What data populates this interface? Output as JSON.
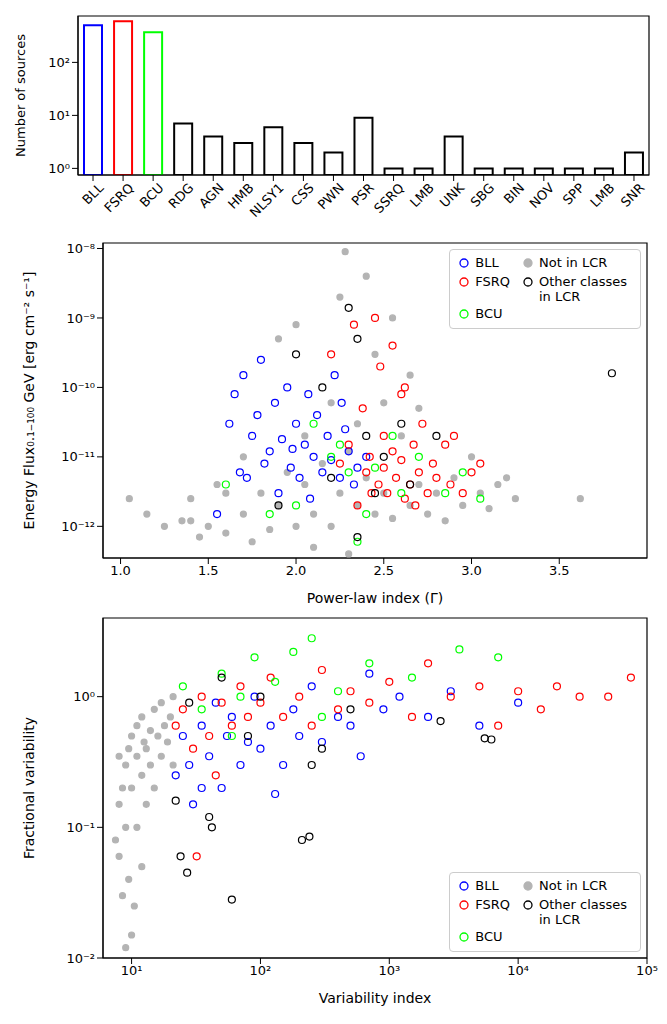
{
  "chart_data": [
    {
      "type": "bar",
      "ylabel": "Number of sources",
      "log": "y",
      "categories": [
        "BLL",
        "FSRQ",
        "BCU",
        "RDG",
        "AGN",
        "HMB",
        "NLSY1",
        "CSS",
        "PWN",
        "PSR",
        "SSRQ",
        "LMB",
        "UNK",
        "SBG",
        "BIN",
        "NOV",
        "SPP",
        "LMB",
        "SNR"
      ],
      "values": [
        500,
        600,
        370,
        7,
        4,
        3,
        6,
        3,
        2,
        9,
        1,
        1,
        4,
        1,
        1,
        1,
        1,
        1,
        2
      ],
      "colors": [
        "#0000ff",
        "#ff0000",
        "#00ff00",
        "#000000",
        "#000000",
        "#000000",
        "#000000",
        "#000000",
        "#000000",
        "#000000",
        "#000000",
        "#000000",
        "#000000",
        "#000000",
        "#000000",
        "#000000",
        "#000000",
        "#000000",
        "#000000"
      ],
      "ylim": [
        0.75,
        750
      ],
      "yticks": [
        {
          "value": 1,
          "label": "10⁰"
        },
        {
          "value": 10,
          "label": "10¹"
        },
        {
          "value": 100,
          "label": "10²"
        }
      ],
      "grid": false
    },
    {
      "type": "scatter",
      "xlabel": "Power-law index (Γ)",
      "ylabel": "Energy Flux₀.₁₋₁₀₀ GeV [erg cm⁻² s⁻¹]",
      "log": "y",
      "xlim": [
        0.9,
        4.0
      ],
      "xticks": [
        {
          "value": 1.0,
          "label": "1.0"
        },
        1.5,
        {
          "value": 2.0,
          "label": "2.0"
        },
        2.5,
        {
          "value": 3.0,
          "label": "3.0"
        },
        3.5
      ],
      "ylim": [
        3.5e-13,
        1.2e-08
      ],
      "yticks": [
        {
          "value": 1e-12,
          "label": "10⁻¹²"
        },
        {
          "value": 1e-11,
          "label": "10⁻¹¹"
        },
        {
          "value": 1e-10,
          "label": "10⁻¹⁰"
        },
        {
          "value": 1e-09,
          "label": "10⁻⁹"
        },
        {
          "value": 1e-08,
          "label": "10⁻⁸"
        }
      ],
      "legend": "upper right",
      "grid": false,
      "series": [
        {
          "name": "BLL",
          "color": "#0000ff",
          "marker": "open_circle",
          "x": [
            1.55,
            1.62,
            1.65,
            1.7,
            1.72,
            1.75,
            1.78,
            1.8,
            1.82,
            1.85,
            1.88,
            1.9,
            1.92,
            1.95,
            1.97,
            2.0,
            2.02,
            2.05,
            2.07,
            2.1,
            2.12,
            2.15,
            2.18,
            2.2,
            2.22,
            2.25,
            2.28,
            2.3,
            2.33,
            2.35,
            1.98,
            2.08,
            2.26,
            1.68,
            2.4
          ],
          "y": [
            1.5e-12,
            3e-11,
            8e-11,
            1.5e-10,
            5e-12,
            2e-11,
            4e-11,
            2.5e-10,
            8e-12,
            1.2e-11,
            6e-11,
            3e-12,
            1.8e-11,
            1e-10,
            7e-12,
            3e-11,
            5e-12,
            1.5e-11,
            8e-11,
            1e-11,
            4e-11,
            6e-12,
            2e-11,
            9e-12,
            1.5e-10,
            5e-12,
            2.5e-11,
            1.2e-11,
            4e-12,
            7e-12,
            1.3e-11,
            2.5e-12,
            6e-11,
            6e-12,
            1e-11
          ]
        },
        {
          "name": "FSRQ",
          "color": "#ff0000",
          "marker": "open_circle",
          "x": [
            2.2,
            2.25,
            2.3,
            2.35,
            2.38,
            2.4,
            2.42,
            2.45,
            2.47,
            2.5,
            2.5,
            2.52,
            2.55,
            2.57,
            2.6,
            2.6,
            2.62,
            2.65,
            2.67,
            2.7,
            2.72,
            2.75,
            2.78,
            2.8,
            2.85,
            2.88,
            2.9,
            2.95,
            3.0,
            3.05,
            2.48,
            2.55,
            2.33,
            2.62,
            2.43,
            2.68
          ],
          "y": [
            3e-10,
            8e-12,
            1.5e-11,
            2e-12,
            5e-11,
            6e-12,
            1e-11,
            1e-09,
            4e-12,
            2e-11,
            7e-12,
            3e-12,
            1.2e-11,
            5e-12,
            8e-11,
            9e-12,
            2.5e-12,
            4e-12,
            1.5e-11,
            6e-12,
            3e-11,
            3e-12,
            8e-12,
            5e-12,
            1.5e-11,
            4e-12,
            2e-11,
            3e-12,
            6e-12,
            8e-12,
            2e-10,
            4e-10,
            8e-10,
            1e-10,
            3e-12,
            2e-12
          ]
        },
        {
          "name": "BCU",
          "color": "#00ff00",
          "marker": "open_circle",
          "x": [
            1.6,
            1.85,
            2.0,
            2.1,
            2.2,
            2.3,
            2.4,
            2.45,
            2.55,
            2.6,
            2.7,
            2.85,
            2.95,
            3.05,
            2.35,
            2.25
          ],
          "y": [
            4e-12,
            1.5e-12,
            2e-12,
            3e-11,
            1e-11,
            6e-12,
            1.5e-12,
            7e-12,
            2e-11,
            3e-12,
            1e-11,
            3e-12,
            6e-12,
            2.5e-12,
            6e-13,
            1.5e-11
          ]
        },
        {
          "name": "Not in LCR",
          "color": "#b4b4b4",
          "marker": "filled_circle",
          "x": [
            1.05,
            1.15,
            1.25,
            1.4,
            1.45,
            1.5,
            1.55,
            1.6,
            1.7,
            1.75,
            1.8,
            1.85,
            1.9,
            1.95,
            2.0,
            2.05,
            2.1,
            2.15,
            2.2,
            2.25,
            2.3,
            2.35,
            2.4,
            2.45,
            2.5,
            2.55,
            2.6,
            2.65,
            2.7,
            2.75,
            2.8,
            2.85,
            2.9,
            2.95,
            3.0,
            3.05,
            3.1,
            3.15,
            3.25,
            3.62,
            2.28,
            2.4,
            2.55,
            2.25,
            2.0,
            1.9,
            2.45,
            1.35,
            2.2,
            2.35,
            2.7,
            1.7,
            2.05,
            2.5,
            3.2,
            1.6,
            2.65,
            2.1,
            2.3,
            1.4
          ],
          "y": [
            2.5e-12,
            1.5e-12,
            1e-12,
            2.5e-12,
            7e-13,
            1e-12,
            4e-12,
            8e-13,
            1.5e-12,
            6e-13,
            3e-12,
            9e-13,
            2e-12,
            6e-12,
            1e-12,
            4e-12,
            1.5e-12,
            8e-12,
            1e-12,
            3e-12,
            1.2e-11,
            2e-12,
            5e-12,
            1.5e-12,
            3e-12,
            1.3e-12,
            2e-11,
            2e-12,
            4e-12,
            1.5e-12,
            3e-12,
            1.2e-12,
            5e-12,
            2e-12,
            1e-11,
            3e-12,
            1.8e-12,
            4e-12,
            2.5e-12,
            2.5e-12,
            9e-09,
            4e-09,
            1e-09,
            2e-09,
            8e-10,
            5e-10,
            3e-10,
            1.2e-12,
            6e-11,
            3e-11,
            5e-11,
            1e-11,
            2e-11,
            6e-11,
            5e-12,
            3e-12,
            1.5e-10,
            5e-13,
            4e-13,
            1.2e-12
          ]
        },
        {
          "name": "Other classes in LCR",
          "color": "#000000",
          "marker": "open_circle",
          "x": [
            2.0,
            2.15,
            2.3,
            2.35,
            2.4,
            2.5,
            2.2,
            2.65,
            2.8,
            1.9,
            2.35,
            3.8,
            2.6,
            2.45
          ],
          "y": [
            3e-10,
            1e-10,
            1.4e-09,
            5e-10,
            2e-11,
            1e-11,
            5e-12,
            4e-12,
            2e-11,
            2e-12,
            7e-13,
            1.6e-10,
            3e-11,
            3e-12
          ]
        }
      ]
    },
    {
      "type": "scatter",
      "xlabel": "Variability index",
      "ylabel": "Fractional variability",
      "log": true,
      "xlim": [
        6,
        100000
      ],
      "xticks": [
        {
          "value": 10,
          "label": "10¹"
        },
        {
          "value": 100,
          "label": "10²"
        },
        {
          "value": 1000,
          "label": "10³"
        },
        {
          "value": 10000,
          "label": "10⁴"
        },
        {
          "value": 100000,
          "label": "10⁵"
        }
      ],
      "ylim": [
        0.01,
        4
      ],
      "yticks": [
        {
          "value": 0.01,
          "label": "10⁻²"
        },
        {
          "value": 0.1,
          "label": "10⁻¹"
        },
        {
          "value": 1,
          "label": "10⁰"
        }
      ],
      "legend": "lower right",
      "grid": false,
      "series": [
        {
          "name": "BLL",
          "color": "#0000ff",
          "marker": "open_circle",
          "x": [
            22,
            25,
            28,
            30,
            35,
            40,
            45,
            50,
            55,
            60,
            70,
            80,
            90,
            100,
            120,
            150,
            180,
            200,
            250,
            300,
            400,
            500,
            700,
            900,
            1200,
            2000,
            3000,
            5000,
            10000,
            130,
            35,
            600
          ],
          "y": [
            0.25,
            0.5,
            0.3,
            0.15,
            0.6,
            0.35,
            0.9,
            0.2,
            0.5,
            0.7,
            0.3,
            0.45,
            1.0,
            0.4,
            0.6,
            0.3,
            0.8,
            0.5,
            1.2,
            0.45,
            0.7,
            0.6,
            1.5,
            0.8,
            1.0,
            0.7,
            1.1,
            0.6,
            0.9,
            0.18,
            0.2,
            0.35
          ]
        },
        {
          "name": "FSRQ",
          "color": "#ff0000",
          "marker": "open_circle",
          "x": [
            22,
            25,
            30,
            35,
            40,
            50,
            60,
            70,
            80,
            100,
            120,
            150,
            200,
            250,
            300,
            400,
            500,
            700,
            1000,
            1500,
            2000,
            3000,
            5000,
            7000,
            10000,
            15000,
            20000,
            30000,
            50000,
            75000,
            32,
            45
          ],
          "y": [
            0.6,
            0.8,
            0.4,
            1.0,
            0.5,
            0.9,
            0.6,
            1.2,
            0.7,
            0.9,
            1.4,
            0.7,
            1.0,
            0.6,
            1.6,
            0.8,
            1.1,
            0.9,
            1.3,
            0.7,
            1.8,
            1.0,
            1.2,
            0.6,
            1.1,
            0.8,
            1.2,
            1.0,
            1.0,
            1.4,
            0.06,
            0.25
          ]
        },
        {
          "name": "BCU",
          "color": "#00ff00",
          "marker": "open_circle",
          "x": [
            25,
            35,
            50,
            70,
            90,
            130,
            180,
            250,
            400,
            700,
            1500,
            3500,
            7000,
            60,
            300
          ],
          "y": [
            1.2,
            0.8,
            1.5,
            1.0,
            2.0,
            1.3,
            2.2,
            2.8,
            1.1,
            1.8,
            1.4,
            2.3,
            2.0,
            0.5,
            0.7
          ]
        },
        {
          "name": "Not in LCR",
          "color": "#b4b4b4",
          "marker": "filled_circle",
          "x": [
            7.5,
            8,
            8,
            8.5,
            8.5,
            9,
            9,
            9.5,
            9.5,
            10,
            10,
            10,
            11,
            11,
            11,
            12,
            12,
            12,
            13,
            13,
            14,
            14,
            15,
            15,
            16,
            17,
            17,
            18,
            19,
            20,
            21,
            21,
            9,
            10.5,
            8,
            12.5
          ],
          "y": [
            0.08,
            0.06,
            0.15,
            0.03,
            0.2,
            0.1,
            0.3,
            0.04,
            0.4,
            0.015,
            0.2,
            0.5,
            0.1,
            0.35,
            0.6,
            0.25,
            0.05,
            0.7,
            0.4,
            0.15,
            0.55,
            0.3,
            0.8,
            0.2,
            0.5,
            0.35,
            0.9,
            0.6,
            0.45,
            0.7,
            0.3,
            1.0,
            0.012,
            0.025,
            0.35,
            0.45
          ]
        },
        {
          "name": "Other classes in LCR",
          "color": "#000000",
          "marker": "open_circle",
          "x": [
            22,
            24,
            27,
            28,
            40,
            42,
            60,
            80,
            100,
            210,
            240,
            250,
            500,
            300,
            2500,
            5500,
            6200,
            50
          ],
          "y": [
            0.16,
            0.06,
            0.045,
            0.9,
            0.12,
            0.1,
            0.028,
            0.5,
            1.0,
            0.08,
            0.085,
            0.3,
            0.8,
            0.4,
            0.65,
            0.48,
            0.47,
            1.4
          ]
        }
      ]
    }
  ]
}
